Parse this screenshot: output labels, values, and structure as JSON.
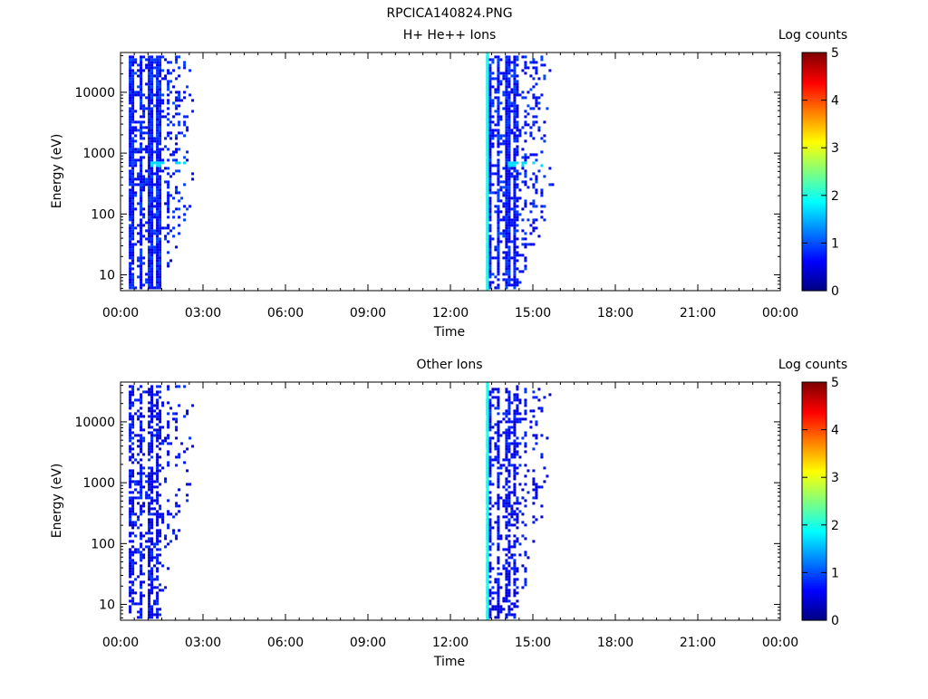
{
  "title": "RPCICA140824.PNG",
  "chart_data": [
    {
      "type": "heatmap",
      "title": "H+ He++ Ions",
      "xlabel": "Time",
      "ylabel": "Energy (eV)",
      "x_ticks": [
        "00:00",
        "03:00",
        "06:00",
        "09:00",
        "12:00",
        "15:00",
        "18:00",
        "21:00",
        "00:00"
      ],
      "x_range_hours": [
        0,
        24
      ],
      "y_scale": "log",
      "y_ticks": [
        10,
        100,
        1000,
        10000
      ],
      "y_tick_labels": [
        "10",
        "100",
        "1000",
        "10000"
      ],
      "ylim": [
        5.5,
        45000
      ],
      "colorbar": {
        "label": "Log counts",
        "range": [
          0,
          5
        ],
        "ticks": [
          "0",
          "1",
          "2",
          "3",
          "4",
          "5"
        ],
        "colormap": "jet"
      },
      "active_intervals": [
        {
          "start": "00:18",
          "end": "02:45",
          "min_energy_ev": 6,
          "max_energy_ev": 40000,
          "dominant_log_counts": 0.7,
          "feature_energy_ev": 700,
          "feature_log_counts": 1.7
        },
        {
          "start": "13:18",
          "end": "15:42",
          "min_energy_ev": 6,
          "max_energy_ev": 40000,
          "dominant_log_counts": 0.7,
          "feature_energy_ev": 700,
          "feature_log_counts": 1.7
        }
      ],
      "vertical_line": {
        "time": "13:18",
        "log_counts": 2.0
      }
    },
    {
      "type": "heatmap",
      "title": "Other Ions",
      "xlabel": "Time",
      "ylabel": "Energy (eV)",
      "x_ticks": [
        "00:00",
        "03:00",
        "06:00",
        "09:00",
        "12:00",
        "15:00",
        "18:00",
        "21:00",
        "00:00"
      ],
      "x_range_hours": [
        0,
        24
      ],
      "y_scale": "log",
      "y_ticks": [
        10,
        100,
        1000,
        10000
      ],
      "y_tick_labels": [
        "10",
        "100",
        "1000",
        "10000"
      ],
      "ylim": [
        5.5,
        45000
      ],
      "colorbar": {
        "label": "Log counts",
        "range": [
          0,
          5
        ],
        "ticks": [
          "0",
          "1",
          "2",
          "3",
          "4",
          "5"
        ],
        "colormap": "jet"
      },
      "active_intervals": [
        {
          "start": "00:18",
          "end": "02:40",
          "min_energy_ev": 6,
          "max_energy_ev": 40000,
          "dominant_log_counts": 0.6
        },
        {
          "start": "13:18",
          "end": "15:40",
          "min_energy_ev": 6,
          "max_energy_ev": 40000,
          "dominant_log_counts": 0.6
        }
      ],
      "vertical_line": {
        "time": "13:18",
        "log_counts": 2.0
      }
    }
  ]
}
